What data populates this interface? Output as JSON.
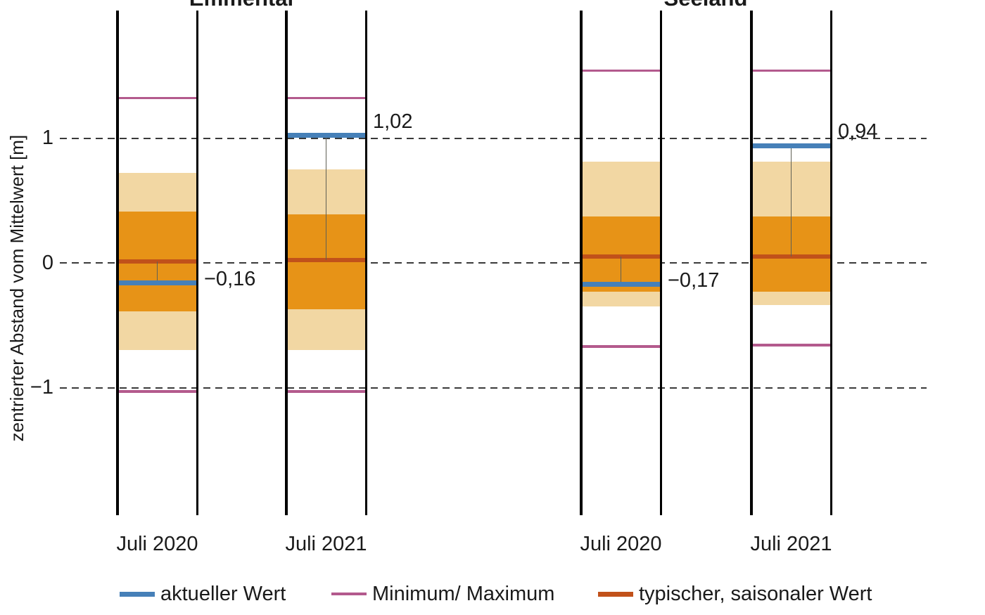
{
  "titles": {
    "left": "Emmental",
    "right": "Seeland"
  },
  "y_axis": {
    "label": "zentrierter Abstand vom Mittelwert [m]",
    "ticks": [
      {
        "label": "1",
        "value": 1
      },
      {
        "label": "0",
        "value": 0
      },
      {
        "label": "−1",
        "value": -1
      }
    ]
  },
  "legend": [
    {
      "id": "current",
      "label": "aktueller Wert",
      "color": "#4680b8"
    },
    {
      "id": "minmax",
      "label": "Minimum/ Maximum",
      "color": "#b35a8d"
    },
    {
      "id": "typical",
      "label": "typischer, saisonaler Wert",
      "color": "#c1511a"
    }
  ],
  "colors": {
    "current": "#4680b8",
    "minmax": "#b35a8d",
    "typical": "#c1511a",
    "band_inner": "#e79317",
    "band_outer": "#f2d7a3",
    "grid": "#3a3a3a",
    "frame": "#000000",
    "connector": "#606055",
    "text": "#1a1a1a"
  },
  "chart_data": {
    "type": "bar",
    "variant": "vertical range-band columns (groundwater level vs. long-term statistics)",
    "ylabel": "zentrierter Abstand vom Mittelwert [m]",
    "yticks": [
      1,
      0,
      -1
    ],
    "ylim": [
      -2.02,
      2.02
    ],
    "grid": "dashed horizontal lines at yticks",
    "legend_position": "bottom",
    "legend_entries": [
      "aktueller Wert",
      "Minimum/ Maximum",
      "typischer, saisonaler Wert"
    ],
    "groups": [
      {
        "title": "Emmental",
        "columns": [
          {
            "x_label": "Juli 2020",
            "current": -0.16,
            "current_label": "−0,16",
            "typical": 0.01,
            "minimum": -1.03,
            "maximum": 1.32,
            "inner_band": [
              -0.39,
              0.41
            ],
            "outer_band": [
              -0.7,
              0.72
            ]
          },
          {
            "x_label": "Juli 2021",
            "current": 1.02,
            "current_label": "1,02",
            "typical": 0.02,
            "minimum": -1.03,
            "maximum": 1.32,
            "inner_band": [
              -0.37,
              0.39
            ],
            "outer_band": [
              -0.7,
              0.75
            ]
          }
        ]
      },
      {
        "title": "Seeland",
        "columns": [
          {
            "x_label": "Juli 2020",
            "current": -0.17,
            "current_label": "−0,17",
            "typical": 0.05,
            "minimum": -0.67,
            "maximum": 1.54,
            "inner_band": [
              -0.23,
              0.37
            ],
            "outer_band": [
              -0.35,
              0.81
            ]
          },
          {
            "x_label": "Juli 2021",
            "current": 0.94,
            "current_label": "0,94",
            "typical": 0.05,
            "minimum": -0.66,
            "maximum": 1.54,
            "inner_band": [
              -0.23,
              0.37
            ],
            "outer_band": [
              -0.34,
              0.81
            ]
          }
        ]
      }
    ]
  }
}
